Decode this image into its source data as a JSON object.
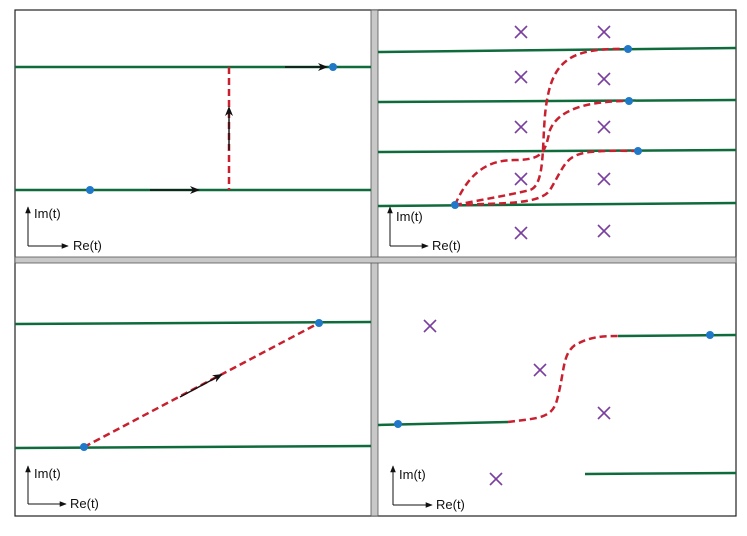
{
  "colors": {
    "contour_line": "#0f6a3c",
    "path_dashed": "#c8202f",
    "point": "#1f78c8",
    "pole_marker": "#7a3ea0",
    "arrow": "#111111",
    "frame": "#222222",
    "divider": "#bdbdbd"
  },
  "axes_labels": {
    "imaginary": "Im(t)",
    "real": "Re(t)"
  },
  "panels": [
    {
      "position": "top-left",
      "axis_imag_label": "Im(t)",
      "axis_real_label": "Re(t)",
      "pole_markers": 0
    },
    {
      "position": "top-right",
      "axis_imag_label": "Im(t)",
      "axis_real_label": "Re(t)",
      "pole_markers": 10
    },
    {
      "position": "bottom-left",
      "axis_imag_label": "Im(t)",
      "axis_real_label": "Re(t)",
      "pole_markers": 0
    },
    {
      "position": "bottom-right",
      "axis_imag_label": "Im(t)",
      "axis_real_label": "Re(t)",
      "pole_markers": 4
    }
  ],
  "pole_glyph": "✕"
}
